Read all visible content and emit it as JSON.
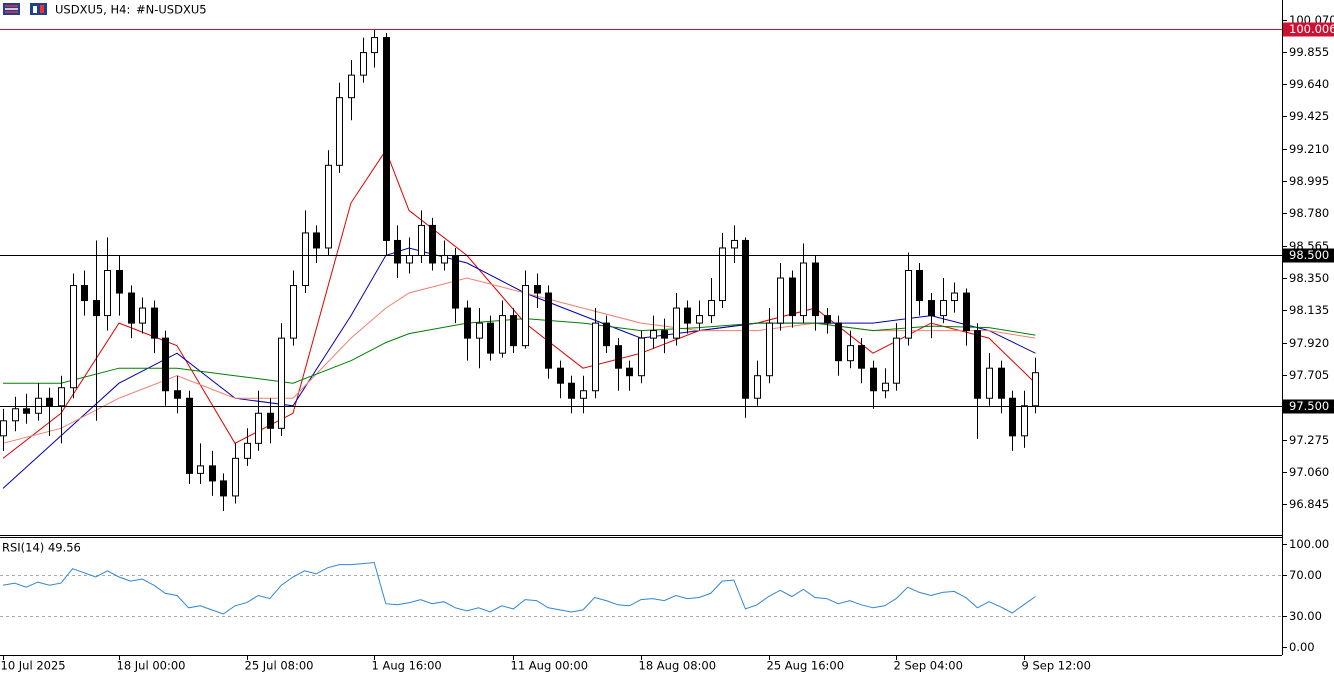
{
  "header": {
    "symbol": "USDXU5, H4:",
    "name": "#N-USDXU5"
  },
  "chart_data": [
    {
      "type": "candlestick",
      "up_color": "#ffffff",
      "down_color": "#000000",
      "edge_color": "#000000",
      "categories": [
        "10 Jul 2025",
        null,
        null,
        null,
        null,
        null,
        null,
        null,
        null,
        null,
        "18 Jul 00:00",
        null,
        null,
        null,
        null,
        null,
        null,
        null,
        null,
        null,
        null,
        "25 Jul 08:00",
        null,
        null,
        null,
        null,
        null,
        null,
        null,
        null,
        null,
        null,
        "1 Aug 16:00",
        null,
        null,
        null,
        null,
        null,
        null,
        null,
        null,
        null,
        null,
        null,
        "11 Aug 00:00",
        null,
        null,
        null,
        null,
        null,
        null,
        null,
        null,
        null,
        null,
        "18 Aug 08:00",
        null,
        null,
        null,
        null,
        null,
        null,
        null,
        null,
        null,
        null,
        "25 Aug 16:00",
        null,
        null,
        null,
        null,
        null,
        null,
        null,
        null,
        null,
        null,
        "2 Sep 04:00",
        null,
        null,
        null,
        null,
        null,
        null,
        null,
        null,
        null,
        null,
        "9 Sep 12:00",
        null
      ],
      "candles": {
        "open": [
          97.3,
          97.4,
          97.48,
          97.45,
          97.55,
          97.5,
          97.62,
          98.3,
          98.2,
          98.1,
          98.4,
          98.25,
          98.05,
          98.15,
          97.95,
          97.6,
          97.55,
          97.05,
          97.1,
          97.0,
          96.9,
          97.15,
          97.25,
          97.45,
          97.35,
          97.95,
          98.3,
          98.65,
          98.55,
          99.1,
          99.55,
          99.7,
          99.85,
          99.95,
          98.6,
          98.45,
          98.5,
          98.7,
          98.45,
          98.5,
          98.15,
          97.95,
          98.05,
          97.85,
          98.1,
          97.9,
          98.3,
          98.25,
          97.75,
          97.65,
          97.55,
          97.6,
          98.05,
          97.9,
          97.75,
          97.7,
          97.95,
          98.0,
          97.95,
          98.15,
          98.05,
          98.1,
          98.2,
          98.55,
          98.6,
          97.55,
          97.7,
          98.05,
          98.35,
          98.1,
          98.45,
          98.1,
          98.05,
          97.8,
          97.9,
          97.75,
          97.6,
          97.65,
          97.95,
          98.4,
          98.2,
          98.1,
          98.2,
          98.25,
          98.0,
          97.55,
          97.75,
          97.55,
          97.3,
          97.5
        ],
        "high": [
          97.48,
          97.56,
          97.58,
          97.65,
          97.62,
          97.7,
          98.38,
          98.4,
          98.6,
          98.62,
          98.5,
          98.3,
          98.22,
          98.2,
          98.0,
          97.7,
          97.6,
          97.25,
          97.2,
          97.05,
          97.25,
          97.35,
          97.6,
          97.55,
          98.05,
          98.4,
          98.8,
          98.7,
          99.2,
          99.65,
          99.8,
          99.95,
          100.0,
          99.98,
          98.7,
          98.62,
          98.8,
          98.75,
          98.6,
          98.55,
          98.2,
          98.15,
          98.1,
          98.2,
          98.15,
          98.4,
          98.38,
          98.3,
          97.8,
          97.7,
          97.7,
          98.15,
          98.1,
          97.95,
          97.8,
          98.0,
          98.1,
          98.08,
          98.25,
          98.2,
          98.2,
          98.35,
          98.65,
          98.7,
          98.62,
          97.8,
          98.15,
          98.45,
          98.4,
          98.58,
          98.5,
          98.15,
          98.1,
          98.0,
          97.95,
          97.8,
          97.75,
          98.05,
          98.52,
          98.45,
          98.25,
          98.35,
          98.32,
          98.28,
          98.05,
          97.85,
          97.8,
          97.6,
          97.6,
          97.82
        ],
        "low": [
          97.2,
          97.33,
          97.38,
          97.4,
          97.3,
          97.25,
          97.55,
          98.1,
          97.4,
          98.0,
          98.1,
          97.95,
          97.98,
          97.85,
          97.5,
          97.45,
          96.98,
          96.98,
          96.9,
          96.8,
          96.85,
          97.1,
          97.2,
          97.25,
          97.3,
          97.9,
          98.25,
          98.45,
          98.5,
          99.05,
          99.4,
          99.65,
          99.75,
          98.5,
          98.35,
          98.38,
          98.45,
          98.4,
          98.4,
          98.05,
          97.8,
          97.75,
          97.8,
          97.82,
          97.85,
          97.88,
          98.15,
          97.68,
          97.55,
          97.45,
          97.45,
          97.55,
          97.85,
          97.6,
          97.6,
          97.65,
          97.88,
          97.85,
          97.9,
          97.98,
          98.0,
          98.05,
          98.15,
          98.45,
          97.42,
          97.5,
          97.65,
          98.0,
          98.02,
          98.05,
          98.0,
          97.98,
          97.7,
          97.75,
          97.65,
          97.48,
          97.55,
          97.6,
          97.9,
          98.1,
          97.95,
          98.05,
          98.12,
          97.9,
          97.28,
          97.5,
          97.45,
          97.2,
          97.22,
          97.45
        ],
        "close": [
          97.4,
          97.48,
          97.45,
          97.55,
          97.5,
          97.62,
          98.3,
          98.2,
          98.1,
          98.4,
          98.25,
          98.05,
          98.15,
          97.95,
          97.6,
          97.55,
          97.05,
          97.1,
          97.0,
          96.9,
          97.15,
          97.25,
          97.45,
          97.35,
          97.95,
          98.3,
          98.65,
          98.55,
          99.1,
          99.55,
          99.7,
          99.85,
          99.95,
          98.6,
          98.45,
          98.5,
          98.7,
          98.45,
          98.5,
          98.15,
          97.95,
          98.05,
          97.85,
          98.1,
          97.9,
          98.3,
          98.25,
          97.75,
          97.65,
          97.55,
          97.6,
          98.05,
          97.9,
          97.75,
          97.7,
          97.95,
          98.0,
          97.95,
          98.15,
          98.05,
          98.1,
          98.2,
          98.55,
          98.6,
          97.55,
          97.7,
          98.05,
          98.35,
          98.1,
          98.45,
          98.1,
          98.05,
          97.8,
          97.9,
          97.75,
          97.6,
          97.65,
          97.95,
          98.4,
          98.2,
          98.1,
          98.2,
          98.25,
          98.0,
          97.55,
          97.75,
          97.55,
          97.3,
          97.5,
          97.72
        ]
      },
      "series": [
        {
          "color": "#e00000",
          "x": [
            0,
            5,
            10,
            15,
            20,
            25,
            30,
            33,
            35,
            40,
            45,
            50,
            55,
            60,
            65,
            70,
            75,
            80,
            85,
            89
          ],
          "values": [
            97.15,
            97.45,
            98.05,
            97.9,
            97.25,
            97.45,
            98.85,
            99.2,
            98.8,
            98.5,
            98.05,
            97.75,
            97.85,
            98.0,
            98.05,
            98.15,
            97.85,
            98.05,
            97.95,
            97.65
          ]
        },
        {
          "color": "#0000b0",
          "x": [
            0,
            5,
            10,
            15,
            20,
            25,
            30,
            33,
            35,
            40,
            45,
            50,
            55,
            60,
            65,
            70,
            75,
            80,
            85,
            89
          ],
          "values": [
            96.95,
            97.3,
            97.65,
            97.85,
            97.55,
            97.5,
            98.1,
            98.5,
            98.55,
            98.45,
            98.25,
            98.1,
            97.95,
            98.0,
            98.05,
            98.05,
            98.05,
            98.1,
            98.0,
            97.85
          ]
        },
        {
          "color": "#f08070",
          "x": [
            0,
            5,
            10,
            15,
            20,
            25,
            30,
            33,
            35,
            40,
            45,
            50,
            55,
            60,
            65,
            70,
            75,
            80,
            85,
            89
          ],
          "values": [
            97.25,
            97.35,
            97.55,
            97.7,
            97.55,
            97.55,
            97.95,
            98.15,
            98.25,
            98.35,
            98.25,
            98.15,
            98.05,
            98.0,
            98.0,
            98.05,
            98.0,
            98.0,
            98.0,
            97.95
          ]
        },
        {
          "color": "#008000",
          "x": [
            0,
            5,
            10,
            15,
            20,
            25,
            30,
            33,
            35,
            40,
            45,
            50,
            55,
            60,
            65,
            70,
            75,
            80,
            85,
            89
          ],
          "values": [
            97.65,
            97.65,
            97.75,
            97.75,
            97.7,
            97.65,
            97.8,
            97.92,
            97.98,
            98.05,
            98.08,
            98.05,
            98.0,
            98.02,
            98.05,
            98.05,
            98.0,
            98.03,
            98.02,
            97.97
          ]
        }
      ],
      "levels": [
        {
          "value": 100.006,
          "color": "#cc1133"
        },
        {
          "value": 98.5,
          "label": "98.500",
          "color": "#000000"
        },
        {
          "value": 97.5,
          "label": "97.500",
          "color": "#000000"
        }
      ],
      "ylim": [
        96.64,
        100.2
      ],
      "yticks": [
        {
          "value": 100.07,
          "label": "100.070"
        },
        99.855,
        {
          "value": 99.64,
          "label": "99.640"
        },
        99.425,
        {
          "value": 99.21,
          "label": "99.210"
        },
        98.995,
        {
          "value": 98.78,
          "label": "98.780"
        },
        98.565,
        {
          "value": 98.35,
          "label": "98.350"
        },
        98.135,
        {
          "value": 97.92,
          "label": "97.920"
        },
        97.705,
        97.275,
        {
          "value": 97.06,
          "label": "97.060"
        },
        96.845
      ]
    },
    {
      "type": "line",
      "title": "RSI(14) 49.56",
      "color": "#2f86d6",
      "values": [
        60,
        62,
        58,
        63,
        60,
        62,
        76,
        72,
        68,
        74,
        68,
        64,
        66,
        60,
        52,
        50,
        38,
        40,
        36,
        32,
        40,
        43,
        50,
        47,
        60,
        68,
        74,
        71,
        77,
        80,
        80,
        81,
        82,
        42,
        41,
        43,
        46,
        42,
        44,
        38,
        35,
        38,
        34,
        40,
        37,
        46,
        45,
        38,
        36,
        34,
        36,
        48,
        45,
        41,
        40,
        46,
        47,
        45,
        50,
        47,
        48,
        52,
        64,
        65,
        37,
        41,
        49,
        55,
        49,
        56,
        48,
        47,
        42,
        45,
        41,
        38,
        40,
        47,
        58,
        53,
        50,
        53,
        54,
        48,
        38,
        44,
        39,
        33,
        41,
        49
      ],
      "ylim": [
        -7.8,
        106.8
      ],
      "yticks": [
        {
          "value": 100,
          "label": "100.00"
        },
        {
          "value": 70,
          "label": "70.00"
        },
        {
          "value": 30,
          "label": "30.00"
        },
        {
          "value": 0,
          "label": "0.00"
        }
      ]
    }
  ]
}
